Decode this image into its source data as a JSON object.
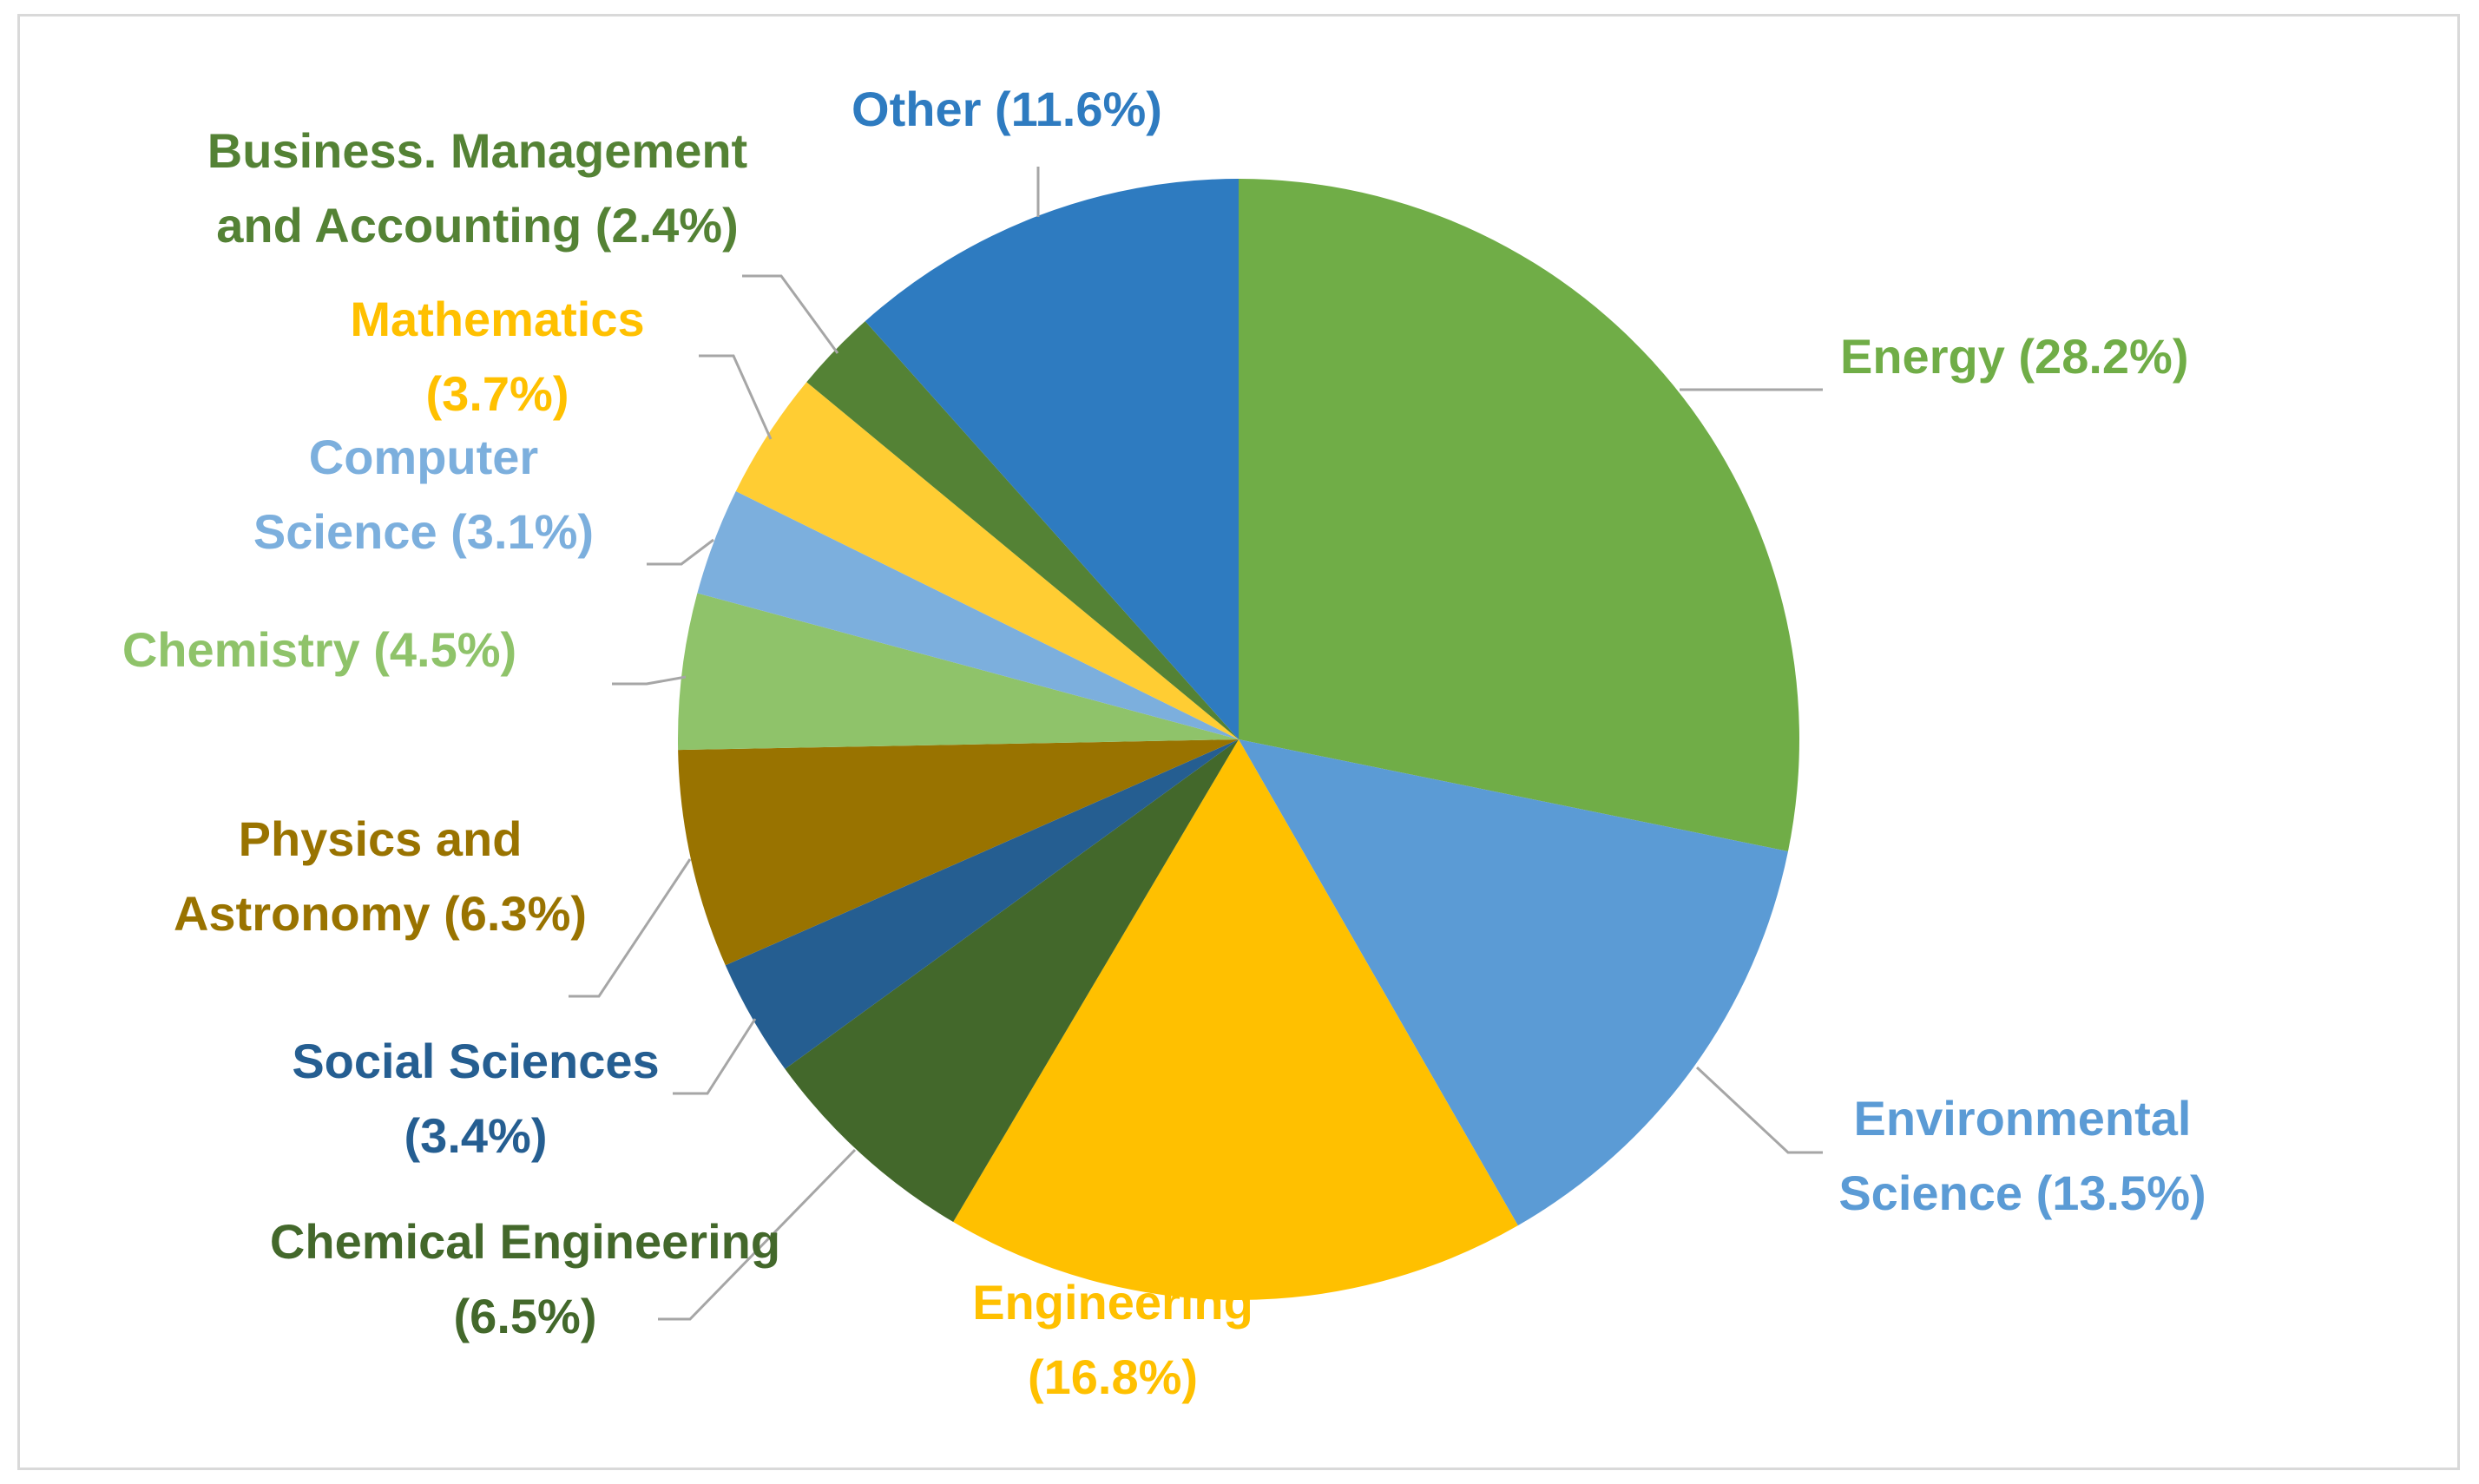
{
  "chart_data": {
    "type": "pie",
    "title": "",
    "start_angle_deg": 0,
    "direction": "clockwise",
    "slices": [
      {
        "name": "Energy",
        "value": 28.2,
        "color": "#70AD47",
        "label": "Energy (28.2%)",
        "lines": [
          "Energy (28.2%)"
        ]
      },
      {
        "name": "Environmental Science",
        "value": 13.5,
        "color": "#5B9BD5",
        "label": "Environmental Science (13.5%)",
        "lines": [
          "Environmental",
          "Science (13.5%)"
        ]
      },
      {
        "name": "Engineering",
        "value": 16.8,
        "color": "#FFC000",
        "label": "Engineering (16.8%)",
        "lines": [
          "Engineering",
          "(16.8%)"
        ]
      },
      {
        "name": "Chemical Engineering",
        "value": 6.5,
        "color": "#43682B",
        "label": "Chemical Engineering (6.5%)",
        "lines": [
          "Chemical Engineering",
          "(6.5%)"
        ]
      },
      {
        "name": "Social Sciences",
        "value": 3.4,
        "color": "#255E91",
        "label": "Social Sciences (3.4%)",
        "lines": [
          "Social Sciences",
          "(3.4%)"
        ]
      },
      {
        "name": "Physics and Astronomy",
        "value": 6.3,
        "color": "#997300",
        "label": "Physics and Astronomy (6.3%)",
        "lines": [
          "Physics and",
          "Astronomy (6.3%)"
        ]
      },
      {
        "name": "Chemistry",
        "value": 4.5,
        "color": "#8FC36A",
        "label": "Chemistry (4.5%)",
        "lines": [
          "Chemistry (4.5%)"
        ]
      },
      {
        "name": "Computer Science",
        "value": 3.1,
        "color": "#7CAFDD",
        "label": "Computer Science (3.1%)",
        "lines": [
          "Computer",
          "Science (3.1%)"
        ]
      },
      {
        "name": "Mathematics",
        "value": 3.7,
        "color": "#FFCD33",
        "label": "Mathematics (3.7%)",
        "lines": [
          "Mathematics",
          "(3.7%)"
        ]
      },
      {
        "name": "Business. Management and Accounting",
        "value": 2.4,
        "color": "#548235",
        "label": "Business. Management and Accounting (2.4%)",
        "lines": [
          "Business. Management",
          "and Accounting (2.4%)"
        ]
      },
      {
        "name": "Other",
        "value": 11.6,
        "color": "#2E7BC0",
        "label": "Other (11.6%)",
        "lines": [
          "Other (11.6%)"
        ]
      }
    ],
    "label_text_colors": {
      "Energy": "#70AD47",
      "Environmental Science": "#5B9BD5",
      "Engineering": "#FFC000",
      "Chemical Engineering": "#43682B",
      "Social Sciences": "#255E91",
      "Physics and Astronomy": "#997300",
      "Chemistry": "#8FC36A",
      "Computer Science": "#7CAFDD",
      "Mathematics": "#FFC000",
      "Business. Management and Accounting": "#548235",
      "Other": "#2E7BC0"
    },
    "leader_line_color": "#A6A6A6",
    "legend": "none"
  }
}
